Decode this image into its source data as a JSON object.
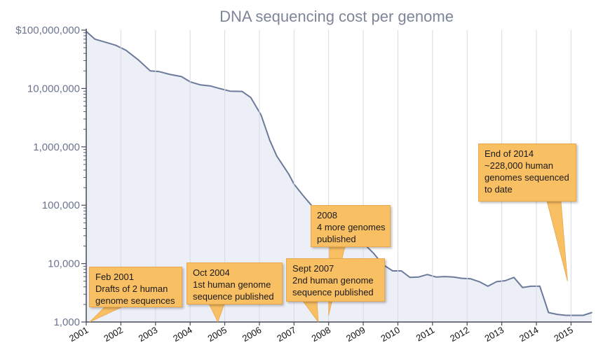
{
  "chart_data": {
    "type": "area",
    "title": "DNA sequencing cost per genome",
    "yscale": "log",
    "ylim": [
      1000,
      100000000
    ],
    "yticks": [
      {
        "value": 100000000,
        "label": "$100,000,000"
      },
      {
        "value": 10000000,
        "label": "10,000,000"
      },
      {
        "value": 1000000,
        "label": "1,000,000"
      },
      {
        "value": 100000,
        "label": "100,000"
      },
      {
        "value": 10000,
        "label": "10,000"
      },
      {
        "value": 1000,
        "label": "1,000"
      }
    ],
    "xlim": [
      2001.0,
      2015.6
    ],
    "xticks": [
      "2001",
      "2002",
      "2003",
      "2004",
      "2005",
      "2006",
      "2007",
      "2008",
      "2009",
      "2010",
      "2011",
      "2012",
      "2013",
      "2014",
      "2015"
    ],
    "grid": "vertical",
    "colors": {
      "line": "#6c7a9c",
      "fill": "#eceff6",
      "grid": "#d6dae3",
      "callout": "#f9bf63"
    },
    "series": [
      {
        "x": [
          2001.0,
          2001.25,
          2001.6,
          2001.85,
          2002.15,
          2002.5,
          2002.85,
          2003.1,
          2003.4,
          2003.75,
          2004.0,
          2004.3,
          2004.6,
          2004.85,
          2005.15,
          2005.5,
          2005.75,
          2006.05,
          2006.3,
          2006.5,
          2006.85,
          2007.0,
          2007.25,
          2007.5,
          2007.8,
          2008.05,
          2008.3,
          2008.55,
          2008.8,
          2009.05,
          2009.3,
          2009.55,
          2009.85,
          2010.1,
          2010.35,
          2010.6,
          2010.85,
          2011.1,
          2011.35,
          2011.6,
          2011.85,
          2012.1,
          2012.35,
          2012.6,
          2012.85,
          2013.1,
          2013.35,
          2013.6,
          2013.85,
          2014.1,
          2014.35,
          2014.6,
          2014.85,
          2015.1,
          2015.35,
          2015.6
        ],
        "values": [
          95000000,
          70000000,
          61000000,
          55000000,
          45000000,
          31000000,
          20000000,
          19500000,
          17500000,
          16000000,
          13000000,
          11500000,
          11000000,
          10000000,
          9000000,
          8900000,
          7000000,
          3500000,
          1300000,
          700000,
          340000,
          230000,
          150000,
          100000,
          70000,
          45000,
          31000,
          30000,
          29000,
          21000,
          15000,
          9800,
          7500,
          7500,
          5800,
          5900,
          6500,
          5900,
          6000,
          5900,
          5600,
          5500,
          4900,
          4100,
          4900,
          5100,
          5800,
          3900,
          4100,
          4100,
          1450,
          1350,
          1300,
          1300,
          1300,
          1450
        ]
      }
    ],
    "annotations": [
      {
        "x": 2001.1,
        "value": 1000,
        "lines": [
          "Feb 2001",
          "Drafts of 2 human",
          "genome sequences"
        ]
      },
      {
        "x": 2004.8,
        "value": 1000,
        "lines": [
          "Oct 2004",
          "1st human genome",
          "sequence published"
        ]
      },
      {
        "x": 2007.7,
        "value": 1000,
        "lines": [
          "Sept 2007",
          "2nd human genome",
          "sequence published"
        ]
      },
      {
        "x": 2008.0,
        "value": 1300,
        "lines": [
          "2008",
          "4 more genomes",
          "published"
        ]
      },
      {
        "x": 2014.9,
        "value": 5000,
        "lines": [
          "End of 2014",
          "~228,000 human",
          "genomes sequenced",
          "to date"
        ]
      }
    ]
  }
}
